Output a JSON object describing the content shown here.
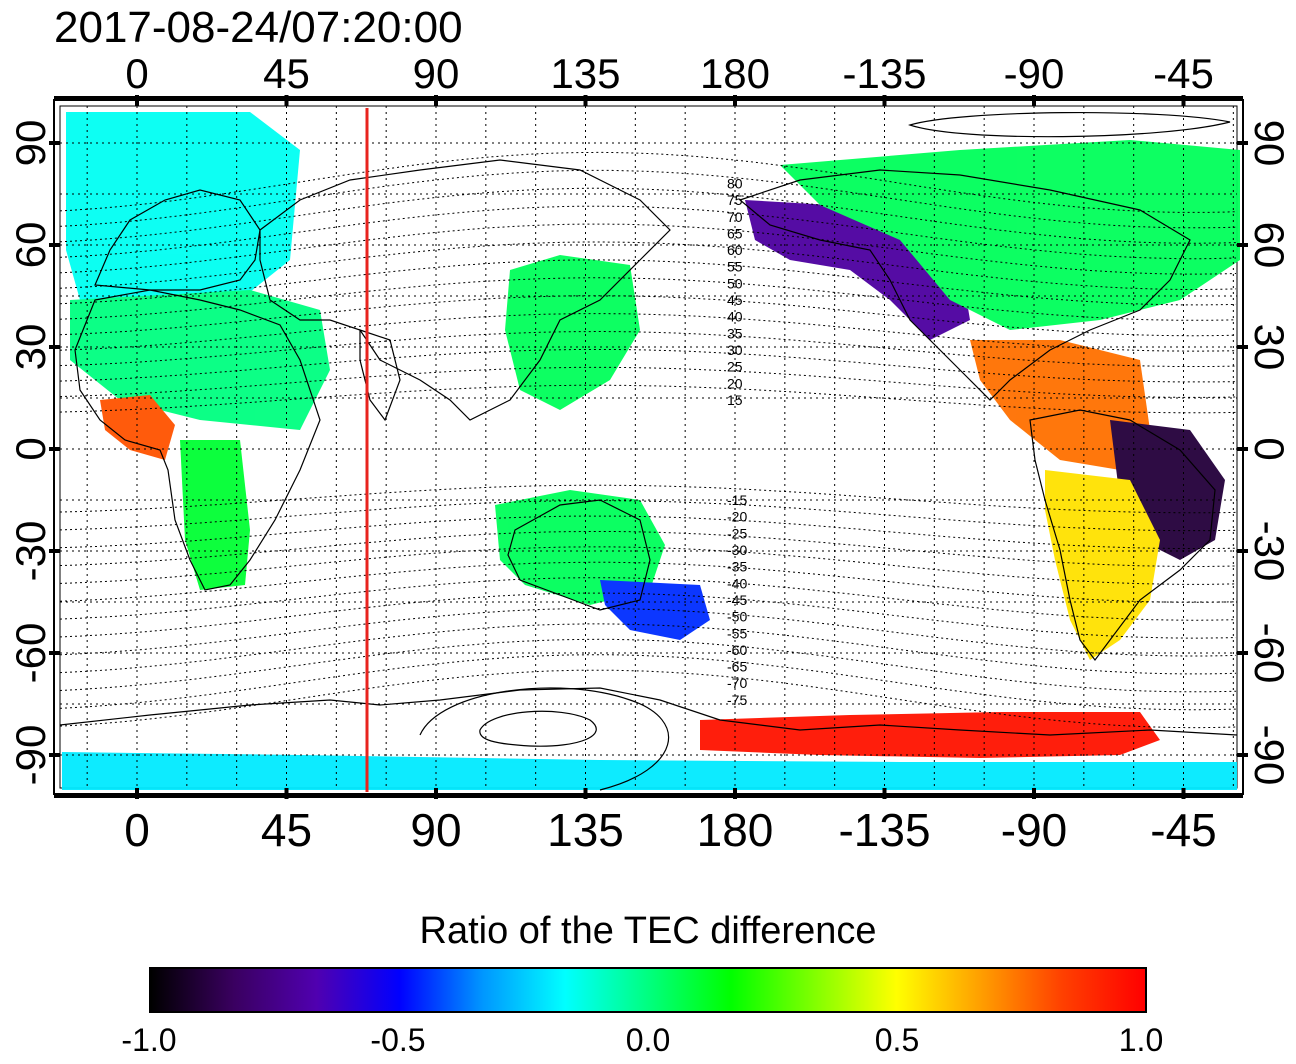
{
  "timestamp": "2017-08-24/07:20:00",
  "colors": {
    "subsolar_line": "#e8231e",
    "coast": "#000000",
    "grid": "#000000"
  },
  "axes": {
    "top_lon_labels": [
      "0",
      "45",
      "90",
      "135",
      "180",
      "-135",
      "-90",
      "-45"
    ],
    "bottom_lon_labels": [
      "0",
      "45",
      "90",
      "135",
      "180",
      "-135",
      "-90",
      "-45"
    ],
    "left_lat_labels": [
      "90",
      "60",
      "30",
      "0",
      "-30",
      "-60",
      "-90"
    ],
    "right_lat_labels": [
      "90",
      "60",
      "30",
      "0",
      "-30",
      "-60",
      "-90"
    ]
  },
  "magnetic_latitude_labels": [
    "80",
    "75",
    "70",
    "65",
    "60",
    "55",
    "50",
    "45",
    "40",
    "35",
    "30",
    "25",
    "20",
    "15",
    "-15",
    "-20",
    "-25",
    "-30",
    "-35",
    "-40",
    "-45",
    "-50",
    "-55",
    "-60",
    "-65",
    "-70",
    "-75"
  ],
  "colorbar": {
    "title": "Ratio of the TEC difference",
    "tick_labels": [
      "-1.0",
      "-0.5",
      "0.0",
      "0.5",
      "1.0"
    ],
    "range": [
      -1.0,
      1.0
    ],
    "stops": [
      "#000000",
      "#3a0060",
      "#5000b0",
      "#0000ff",
      "#0096ff",
      "#00ffff",
      "#00ff80",
      "#00ff00",
      "#80ff00",
      "#ffff00",
      "#ffa000",
      "#ff4000",
      "#ff0000"
    ]
  },
  "tec_regions": [
    {
      "name": "europe",
      "value": -0.15
    },
    {
      "name": "north-africa",
      "value": 0.0
    },
    {
      "name": "west-africa",
      "value": 0.8
    },
    {
      "name": "southern-africa",
      "value": 0.1
    },
    {
      "name": "east-asia",
      "value": 0.05
    },
    {
      "name": "australia",
      "value": 0.05
    },
    {
      "name": "tasman-sea",
      "value": -0.45
    },
    {
      "name": "alaska-western-canada",
      "value": -0.7
    },
    {
      "name": "eastern-canada",
      "value": 0.05
    },
    {
      "name": "central-america",
      "value": 0.75
    },
    {
      "name": "brazil",
      "value": -0.9
    },
    {
      "name": "andes",
      "value": 0.55
    },
    {
      "name": "antarctic-peninsula",
      "value": 0.95
    },
    {
      "name": "southern-ocean",
      "value": -0.2
    }
  ]
}
